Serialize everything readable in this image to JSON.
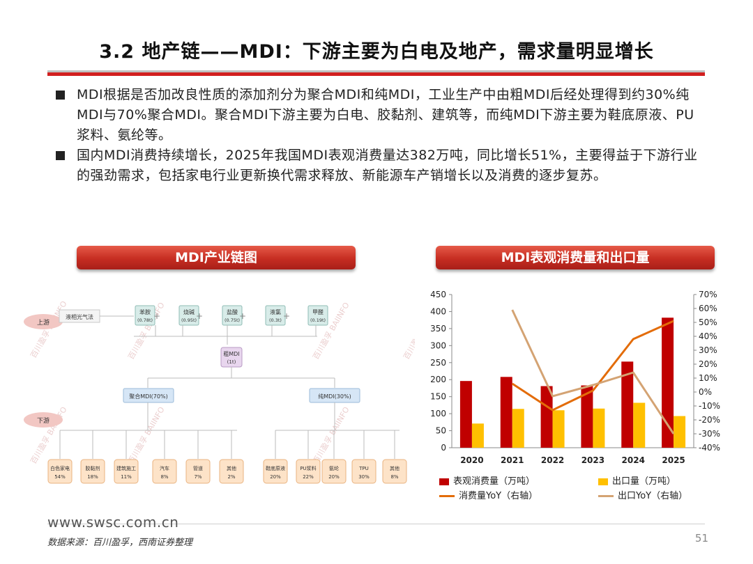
{
  "header": {
    "title": "3.2 地产链——MDI：下游主要为白电及地产，需求量明显增长"
  },
  "bullets": [
    "MDI根据是否加改良性质的添加剂分为聚合MDI和纯MDI，工业生产中由粗MDI后经处理得到约30%纯MDI与70%聚合MDI。聚合MDI下游主要为白电、胶黏剂、建筑等，而纯MDI下游主要为鞋底原液、PU浆料、氨纶等。",
    "国内MDI消费持续增长，2025年我国MDI表观消费量达382万吨，同比增长51%，主要得益于下游行业的强劲需求，包括家电行业更新换代需求释放、新能源车产销增长以及消费的逐步复苏。"
  ],
  "left_panel": {
    "title": "MDI产业链图",
    "upstream_label": "上游",
    "downstream_label": "下游",
    "process": "液相光气法",
    "raw_materials": [
      {
        "name": "苯胺",
        "amount": "(0.78t)"
      },
      {
        "name": "烧碱",
        "amount": "(0.95t)"
      },
      {
        "name": "盐酸",
        "amount": "(0.75t)"
      },
      {
        "name": "液氯",
        "amount": "(0.3t)"
      },
      {
        "name": "甲醛",
        "amount": "(0.19t)"
      }
    ],
    "crude": {
      "name": "粗MDI",
      "amount": "(1t)"
    },
    "polymeric": "聚合MDI(70%)",
    "pure": "纯MDI(30%)",
    "polymeric_uses": [
      {
        "name": "白色家电",
        "pct": "54%"
      },
      {
        "name": "胶黏剂",
        "pct": "18%"
      },
      {
        "name": "建筑施工",
        "pct": "11%"
      },
      {
        "name": "汽车",
        "pct": "8%"
      },
      {
        "name": "管道",
        "pct": "7%"
      },
      {
        "name": "其他",
        "pct": "2%"
      }
    ],
    "pure_uses": [
      {
        "name": "鞋底原液",
        "pct": "20%"
      },
      {
        "name": "PU浆料",
        "pct": "22%"
      },
      {
        "name": "氨纶",
        "pct": "20%"
      },
      {
        "name": "TPU",
        "pct": "30%"
      },
      {
        "name": "其他",
        "pct": "8%"
      }
    ],
    "watermark_text": "百川盈孚 BAIINFO"
  },
  "right_panel": {
    "title": "MDI表观消费量和出口量"
  },
  "chart_data": {
    "type": "bar",
    "categories": [
      "2020",
      "2021",
      "2022",
      "2023",
      "2024",
      "2025"
    ],
    "series": [
      {
        "name": "表观消费量（万吨）",
        "kind": "bar",
        "axis": "left",
        "color": "#c00000",
        "values": [
          196,
          208,
          181,
          183,
          253,
          382
        ]
      },
      {
        "name": "出口量（万吨）",
        "kind": "bar",
        "axis": "left",
        "color": "#ffc000",
        "values": [
          71,
          114,
          110,
          115,
          132,
          93
        ]
      },
      {
        "name": "消费量YoY（右轴）",
        "kind": "line",
        "axis": "right",
        "color": "#e36c09",
        "values": [
          null,
          6,
          -13,
          1,
          38,
          51
        ]
      },
      {
        "name": "出口YoY（右轴）",
        "kind": "line",
        "axis": "right",
        "color": "#d4a373",
        "values": [
          null,
          59,
          -3,
          5,
          14,
          -30
        ]
      }
    ],
    "ylim": [
      0,
      450
    ],
    "yticks": [
      0,
      50,
      100,
      150,
      200,
      250,
      300,
      350,
      400,
      450
    ],
    "y2lim": [
      -40,
      70
    ],
    "y2ticks": [
      "-40%",
      "-30%",
      "-20%",
      "-10%",
      "0%",
      "10%",
      "20%",
      "30%",
      "40%",
      "50%",
      "60%",
      "70%"
    ],
    "grid": false,
    "legend": "bottom"
  },
  "footer": {
    "site": "www.swsc.com.cn",
    "source": "数据来源：百川盈孚，西南证券整理",
    "page": "51"
  }
}
